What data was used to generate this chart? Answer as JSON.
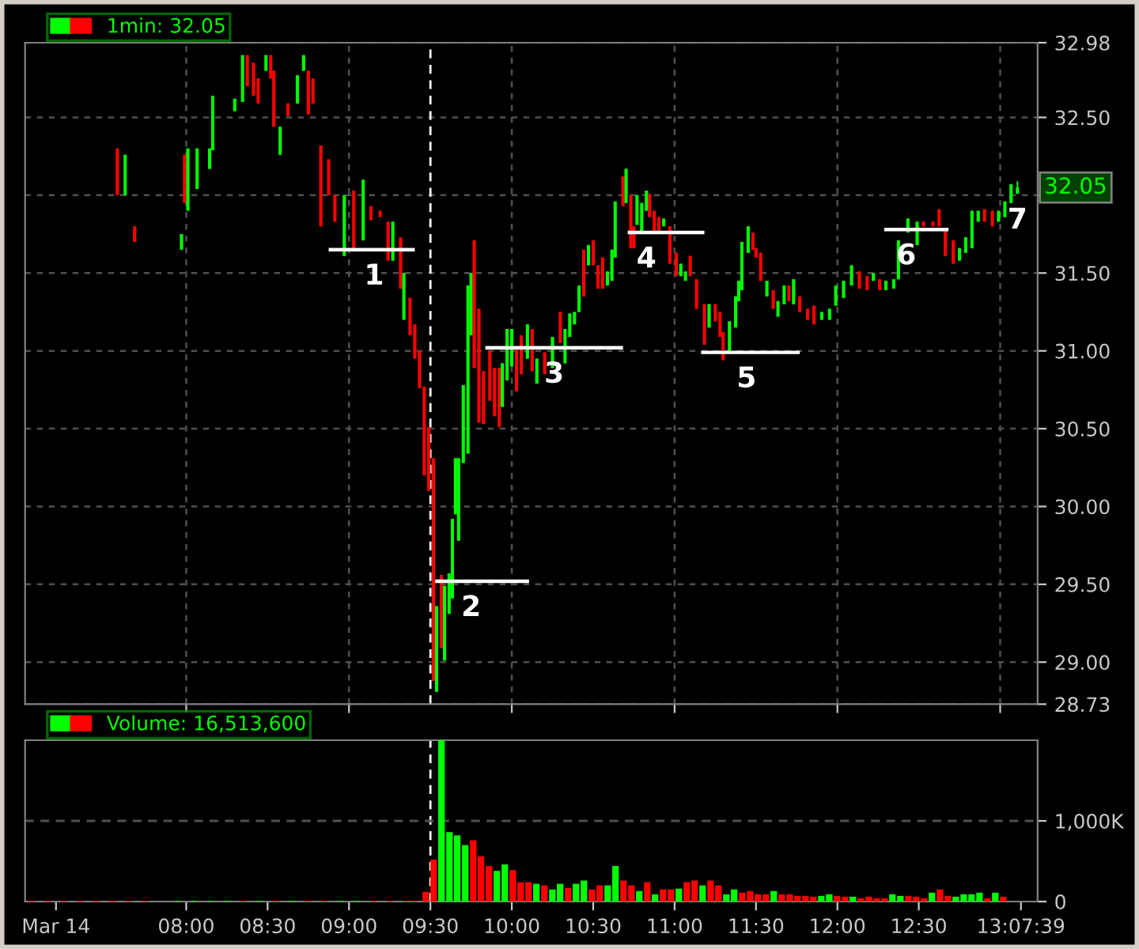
{
  "chart_data": [
    {
      "type": "candlestick",
      "xlim": [
        7.01,
        13.23
      ],
      "ylim": [
        28.73,
        32.98
      ],
      "xticks": [
        {
          "value": 8,
          "label": null
        },
        {
          "value": 9,
          "label": null
        },
        {
          "value": 10,
          "label": null
        },
        {
          "value": 11,
          "label": null
        },
        {
          "value": 12,
          "label": null
        },
        {
          "value": 13,
          "label": null
        }
      ],
      "yticks": [
        {
          "value": 28.73,
          "label": "28.73"
        },
        {
          "value": 29.0,
          "label": "29.00"
        },
        {
          "value": 29.5,
          "label": "29.50"
        },
        {
          "value": 30.0,
          "label": "30.00"
        },
        {
          "value": 30.5,
          "label": "30.50"
        },
        {
          "value": 31.0,
          "label": "31.00"
        },
        {
          "value": 31.5,
          "label": "31.50"
        },
        {
          "value": 32.0,
          "label": null
        },
        {
          "value": 32.5,
          "label": "32.50"
        },
        {
          "value": 32.98,
          "label": "32.98"
        }
      ],
      "tick_labels": "y",
      "grid": true,
      "legend": "top left",
      "ref_lines": [
        {
          "axis": "x",
          "value": 9.5,
          "color": "#ffffff",
          "line_style": "dashed"
        }
      ],
      "annotations": [
        {
          "text": "1",
          "x": 9.154,
          "y": 31.65
        },
        {
          "text": "2",
          "x": 9.75,
          "y": 29.52
        },
        {
          "text": "3",
          "x": 10.26,
          "y": 31.02
        },
        {
          "text": "4",
          "x": 10.827,
          "y": 31.76
        },
        {
          "text": "5",
          "x": 11.442,
          "y": 30.99
        },
        {
          "text": "6",
          "x": 12.423,
          "y": 31.78
        },
        {
          "text": "7",
          "x": 13.106,
          "y": 32.01
        },
        "32.05"
      ],
      "series": [
        {
          "name": "1min: 32.05",
          "x": [
            7.577,
            7.625,
            7.683,
            7.971,
            7.99,
            8.01,
            8.067,
            8.144,
            8.163,
            8.298,
            8.346,
            8.375,
            8.413,
            8.442,
            8.49,
            8.519,
            8.538,
            8.577,
            8.625,
            8.683,
            8.721,
            8.75,
            8.779,
            8.827,
            8.875,
            8.913,
            8.971,
            9.029,
            9.087,
            9.135,
            9.192,
            9.24,
            9.269,
            9.317,
            9.337,
            9.375,
            9.404,
            9.433,
            9.462,
            9.49,
            9.519,
            9.538,
            9.567,
            9.587,
            9.615,
            9.635,
            9.654,
            9.673,
            9.702,
            9.731,
            9.75,
            9.769,
            9.798,
            9.827,
            9.865,
            9.894,
            9.923,
            9.942,
            9.971,
            10.0,
            10.029,
            10.058,
            10.096,
            10.125,
            10.154,
            10.202,
            10.25,
            10.298,
            10.327,
            10.356,
            10.385,
            10.413,
            10.442,
            10.471,
            10.5,
            10.529,
            10.558,
            10.587,
            10.615,
            10.635,
            10.683,
            10.702,
            10.731,
            10.75,
            10.769,
            10.798,
            10.827,
            10.846,
            10.875,
            10.904,
            10.933,
            10.971,
            11.01,
            11.038,
            11.067,
            11.096,
            11.135,
            11.183,
            11.212,
            11.25,
            11.279,
            11.298,
            11.337,
            11.375,
            11.394,
            11.413,
            11.452,
            11.481,
            11.5,
            11.529,
            11.567,
            11.606,
            11.635,
            11.673,
            11.702,
            11.731,
            11.769,
            11.817,
            11.856,
            11.904,
            11.952,
            11.99,
            12.038,
            12.087,
            12.135,
            12.183,
            12.221,
            12.26,
            12.298,
            12.346,
            12.375,
            12.433,
            12.49,
            12.529,
            12.587,
            12.625,
            12.663,
            12.712,
            12.75,
            12.788,
            12.827,
            12.865,
            12.904,
            12.952,
            12.99,
            13.029,
            13.067,
            13.106
          ],
          "ohlc": [
            [
              32.3,
              32.3,
              32.0,
              32.0
            ],
            [
              32.0,
              32.26,
              32.0,
              32.26
            ],
            [
              31.8,
              31.8,
              31.7,
              31.7
            ],
            [
              31.65,
              31.75,
              31.65,
              31.75
            ],
            [
              32.26,
              32.26,
              31.95,
              31.95
            ],
            [
              31.9,
              32.3,
              31.9,
              32.3
            ],
            [
              32.04,
              32.3,
              32.04,
              32.3
            ],
            [
              32.17,
              32.3,
              32.17,
              32.3
            ],
            [
              32.29,
              32.64,
              32.29,
              32.64
            ],
            [
              32.54,
              32.62,
              32.54,
              32.62
            ],
            [
              32.6,
              32.9,
              32.6,
              32.9
            ],
            [
              32.9,
              32.9,
              32.7,
              32.7
            ],
            [
              32.85,
              32.85,
              32.64,
              32.64
            ],
            [
              32.75,
              32.75,
              32.59,
              32.59
            ],
            [
              32.8,
              32.9,
              32.8,
              32.9
            ],
            [
              32.9,
              32.9,
              32.75,
              32.75
            ],
            [
              32.8,
              32.8,
              32.44,
              32.44
            ],
            [
              32.26,
              32.44,
              32.26,
              32.44
            ],
            [
              32.59,
              32.59,
              32.51,
              32.51
            ],
            [
              32.59,
              32.77,
              32.59,
              32.77
            ],
            [
              32.8,
              32.9,
              32.8,
              32.9
            ],
            [
              32.8,
              32.8,
              32.52,
              32.52
            ],
            [
              32.75,
              32.75,
              32.59,
              32.59
            ],
            [
              32.32,
              32.32,
              31.8,
              31.8
            ],
            [
              32.23,
              32.23,
              32.0,
              32.0
            ],
            [
              32.0,
              32.0,
              31.83,
              31.83
            ],
            [
              31.61,
              32.0,
              31.61,
              32.0
            ],
            [
              32.03,
              32.03,
              31.66,
              31.66
            ],
            [
              31.71,
              32.1,
              31.71,
              32.1
            ],
            [
              31.93,
              31.93,
              31.84,
              31.84
            ],
            [
              31.9,
              31.9,
              31.86,
              31.86
            ],
            [
              31.83,
              31.83,
              31.58,
              31.58
            ],
            [
              31.58,
              31.83,
              31.58,
              31.83
            ],
            [
              31.73,
              31.73,
              31.4,
              31.4
            ],
            [
              31.2,
              31.5,
              31.2,
              31.5
            ],
            [
              31.34,
              31.34,
              31.1,
              31.1
            ],
            [
              31.17,
              31.17,
              30.95,
              30.95
            ],
            [
              31.0,
              31.0,
              30.76,
              30.76
            ],
            [
              30.77,
              30.77,
              30.2,
              30.2
            ],
            [
              30.51,
              30.51,
              30.1,
              30.1
            ],
            [
              30.31,
              30.31,
              28.88,
              28.88
            ],
            [
              28.81,
              29.36,
              28.81,
              29.36
            ],
            [
              29.56,
              29.56,
              29.09,
              29.09
            ],
            [
              29.01,
              29.49,
              29.01,
              29.49
            ],
            [
              29.31,
              29.57,
              29.31,
              29.57
            ],
            [
              29.41,
              29.92,
              29.41,
              29.92
            ],
            [
              29.95,
              30.31,
              29.95,
              30.31
            ],
            [
              29.78,
              30.31,
              29.78,
              30.31
            ],
            [
              30.28,
              30.78,
              30.28,
              30.78
            ],
            [
              30.34,
              31.42,
              30.34,
              31.42
            ],
            [
              31.1,
              31.5,
              31.1,
              31.5
            ],
            [
              31.71,
              31.71,
              30.89,
              30.89
            ],
            [
              31.27,
              31.27,
              30.54,
              30.54
            ],
            [
              30.87,
              30.87,
              30.53,
              30.53
            ],
            [
              31.0,
              31.0,
              30.68,
              30.68
            ],
            [
              30.89,
              30.89,
              30.58,
              30.58
            ],
            [
              30.89,
              30.89,
              30.51,
              30.51
            ],
            [
              30.64,
              30.92,
              30.64,
              30.92
            ],
            [
              30.81,
              31.14,
              30.81,
              31.14
            ],
            [
              30.9,
              31.14,
              30.9,
              31.14
            ],
            [
              31.02,
              31.02,
              30.74,
              30.74
            ],
            [
              31.1,
              31.1,
              30.85,
              30.85
            ],
            [
              30.95,
              31.17,
              30.95,
              31.17
            ],
            [
              31.14,
              31.14,
              30.87,
              30.87
            ],
            [
              30.79,
              30.95,
              30.79,
              30.95
            ],
            [
              30.99,
              30.99,
              30.85,
              30.85
            ],
            [
              30.89,
              31.09,
              30.89,
              31.09
            ],
            [
              31.25,
              31.25,
              31.05,
              31.05
            ],
            [
              30.92,
              31.14,
              30.92,
              31.14
            ],
            [
              31.09,
              31.24,
              31.09,
              31.24
            ],
            [
              31.17,
              31.25,
              31.17,
              31.25
            ],
            [
              31.25,
              31.42,
              31.25,
              31.42
            ],
            [
              31.65,
              31.65,
              31.35,
              31.35
            ],
            [
              31.55,
              31.68,
              31.55,
              31.68
            ],
            [
              31.71,
              31.71,
              31.55,
              31.55
            ],
            [
              31.55,
              31.55,
              31.4,
              31.4
            ],
            [
              31.6,
              31.6,
              31.4,
              31.4
            ],
            [
              31.42,
              31.51,
              31.42,
              31.51
            ],
            [
              31.45,
              31.65,
              31.45,
              31.65
            ],
            [
              31.6,
              31.96,
              31.6,
              31.96
            ],
            [
              32.12,
              32.12,
              31.93,
              31.93
            ],
            [
              31.95,
              32.17,
              31.95,
              32.17
            ],
            [
              32.0,
              32.0,
              31.66,
              31.66
            ],
            [
              31.8,
              31.8,
              31.66,
              31.66
            ],
            [
              31.81,
              32.0,
              31.81,
              32.0
            ],
            [
              31.76,
              31.95,
              31.76,
              31.95
            ],
            [
              31.9,
              32.03,
              31.9,
              32.03
            ],
            [
              32.01,
              32.01,
              31.86,
              31.86
            ],
            [
              31.9,
              31.9,
              31.76,
              31.76
            ],
            [
              31.86,
              31.86,
              31.76,
              31.76
            ],
            [
              31.8,
              31.85,
              31.8,
              31.85
            ],
            [
              31.8,
              31.8,
              31.56,
              31.56
            ],
            [
              31.63,
              31.63,
              31.48,
              31.48
            ],
            [
              31.48,
              31.56,
              31.48,
              31.56
            ],
            [
              31.45,
              31.51,
              31.45,
              31.51
            ],
            [
              31.61,
              31.61,
              31.48,
              31.48
            ],
            [
              31.46,
              31.46,
              31.27,
              31.27
            ],
            [
              31.3,
              31.3,
              31.04,
              31.04
            ],
            [
              31.15,
              31.3,
              31.15,
              31.3
            ],
            [
              31.3,
              31.3,
              31.19,
              31.19
            ],
            [
              31.25,
              31.25,
              31.09,
              31.09
            ],
            [
              31.12,
              31.12,
              30.94,
              30.94
            ],
            [
              31.0,
              31.19,
              31.0,
              31.19
            ],
            [
              31.15,
              31.35,
              31.15,
              31.35
            ],
            [
              31.32,
              31.45,
              31.32,
              31.45
            ],
            [
              31.39,
              31.7,
              31.39,
              31.7
            ],
            [
              31.63,
              31.8,
              31.63,
              31.8
            ],
            [
              31.76,
              31.76,
              31.65,
              31.65
            ],
            [
              31.66,
              31.66,
              31.6,
              31.6
            ],
            [
              31.63,
              31.63,
              31.45,
              31.45
            ],
            [
              31.35,
              31.45,
              31.35,
              31.45
            ],
            [
              31.39,
              31.39,
              31.27,
              31.27
            ],
            [
              31.22,
              31.32,
              31.22,
              31.32
            ],
            [
              31.3,
              31.42,
              31.3,
              31.42
            ],
            [
              31.42,
              31.42,
              31.32,
              31.32
            ],
            [
              31.3,
              31.46,
              31.3,
              31.46
            ],
            [
              31.35,
              31.35,
              31.25,
              31.25
            ],
            [
              31.27,
              31.27,
              31.2,
              31.2
            ],
            [
              31.29,
              31.29,
              31.17,
              31.17
            ],
            [
              31.2,
              31.25,
              31.2,
              31.25
            ],
            [
              31.2,
              31.27,
              31.2,
              31.27
            ],
            [
              31.29,
              31.42,
              31.29,
              31.42
            ],
            [
              31.34,
              31.45,
              31.34,
              31.45
            ],
            [
              31.42,
              31.55,
              31.42,
              31.55
            ],
            [
              31.51,
              31.51,
              31.4,
              31.4
            ],
            [
              31.48,
              31.48,
              31.39,
              31.39
            ],
            [
              31.45,
              31.5,
              31.45,
              31.5
            ],
            [
              31.46,
              31.46,
              31.39,
              31.39
            ],
            [
              31.39,
              31.45,
              31.39,
              31.45
            ],
            [
              31.4,
              31.46,
              31.4,
              31.46
            ],
            [
              31.46,
              31.71,
              31.46,
              31.71
            ],
            [
              31.76,
              31.85,
              31.76,
              31.85
            ],
            [
              31.68,
              31.83,
              31.68,
              31.83
            ],
            [
              31.83,
              31.83,
              31.8,
              31.8
            ],
            [
              31.83,
              31.83,
              31.8,
              31.8
            ],
            [
              31.91,
              31.91,
              31.8,
              31.8
            ],
            [
              31.78,
              31.78,
              31.61,
              31.61
            ],
            [
              31.71,
              31.71,
              31.56,
              31.56
            ],
            [
              31.58,
              31.66,
              31.58,
              31.66
            ],
            [
              31.63,
              31.73,
              31.63,
              31.73
            ],
            [
              31.66,
              31.9,
              31.66,
              31.9
            ],
            [
              31.83,
              31.9,
              31.83,
              31.9
            ],
            [
              31.91,
              31.91,
              31.83,
              31.83
            ],
            [
              31.9,
              31.9,
              31.8,
              31.8
            ],
            [
              31.83,
              31.9,
              31.83,
              31.9
            ],
            [
              31.86,
              31.96,
              31.86,
              31.96
            ],
            [
              31.95,
              32.07,
              31.95,
              32.07
            ],
            [
              32.01,
              32.09,
              32.01,
              32.05
            ]
          ],
          "colors": [
            "#ff0000",
            "#00ff00",
            "#ff0000",
            "#00ff00",
            "#ff0000",
            "#00ff00",
            "#00ff00",
            "#00ff00",
            "#00ff00",
            "#00ff00",
            "#00ff00",
            "#ff0000",
            "#ff0000",
            "#ff0000",
            "#00ff00",
            "#ff0000",
            "#ff0000",
            "#00ff00",
            "#ff0000",
            "#00ff00",
            "#00ff00",
            "#ff0000",
            "#ff0000",
            "#ff0000",
            "#ff0000",
            "#ff0000",
            "#00ff00",
            "#ff0000",
            "#00ff00",
            "#ff0000",
            "#ff0000",
            "#ff0000",
            "#00ff00",
            "#ff0000",
            "#00ff00",
            "#ff0000",
            "#ff0000",
            "#ff0000",
            "#ff0000",
            "#ff0000",
            "#ff0000",
            "#00ff00",
            "#ff0000",
            "#00ff00",
            "#00ff00",
            "#00ff00",
            "#00ff00",
            "#00ff00",
            "#00ff00",
            "#00ff00",
            "#00ff00",
            "#ff0000",
            "#ff0000",
            "#ff0000",
            "#ff0000",
            "#ff0000",
            "#ff0000",
            "#00ff00",
            "#00ff00",
            "#00ff00",
            "#ff0000",
            "#ff0000",
            "#00ff00",
            "#ff0000",
            "#00ff00",
            "#ff0000",
            "#00ff00",
            "#ff0000",
            "#00ff00",
            "#00ff00",
            "#00ff00",
            "#00ff00",
            "#ff0000",
            "#00ff00",
            "#ff0000",
            "#ff0000",
            "#ff0000",
            "#00ff00",
            "#00ff00",
            "#00ff00",
            "#ff0000",
            "#00ff00",
            "#ff0000",
            "#ff0000",
            "#00ff00",
            "#00ff00",
            "#00ff00",
            "#ff0000",
            "#ff0000",
            "#ff0000",
            "#00ff00",
            "#ff0000",
            "#ff0000",
            "#00ff00",
            "#00ff00",
            "#ff0000",
            "#ff0000",
            "#ff0000",
            "#00ff00",
            "#ff0000",
            "#ff0000",
            "#ff0000",
            "#00ff00",
            "#00ff00",
            "#00ff00",
            "#00ff00",
            "#00ff00",
            "#ff0000",
            "#ff0000",
            "#ff0000",
            "#00ff00",
            "#ff0000",
            "#00ff00",
            "#00ff00",
            "#ff0000",
            "#00ff00",
            "#ff0000",
            "#ff0000",
            "#ff0000",
            "#00ff00",
            "#00ff00",
            "#00ff00",
            "#00ff00",
            "#00ff00",
            "#ff0000",
            "#ff0000",
            "#00ff00",
            "#ff0000",
            "#00ff00",
            "#00ff00",
            "#00ff00",
            "#00ff00",
            "#00ff00",
            "#ff0000",
            "#ff0000",
            "#ff0000",
            "#ff0000",
            "#ff0000",
            "#00ff00",
            "#00ff00",
            "#00ff00",
            "#00ff00",
            "#ff0000",
            "#ff0000",
            "#00ff00",
            "#00ff00",
            "#00ff00",
            "#00ff00"
          ]
        },
        {
          "type": "line",
          "color": "#ffffff",
          "x": [
            8.875,
            9.404
          ],
          "values": [
            31.65,
            31.65
          ]
        },
        {
          "type": "line",
          "color": "#ffffff",
          "x": [
            9.529,
            10.106
          ],
          "values": [
            29.52,
            29.52
          ]
        },
        {
          "type": "line",
          "color": "#ffffff",
          "x": [
            9.837,
            10.683
          ],
          "values": [
            31.02,
            31.02
          ]
        },
        {
          "type": "line",
          "color": "#ffffff",
          "x": [
            10.712,
            11.183
          ],
          "values": [
            31.76,
            31.76
          ]
        },
        {
          "type": "line",
          "color": "#ffffff",
          "x": [
            11.163,
            11.769
          ],
          "values": [
            30.99,
            30.99
          ]
        },
        {
          "type": "line",
          "color": "#ffffff",
          "x": [
            12.288,
            12.683
          ],
          "values": [
            31.78,
            31.78
          ]
        }
      ]
    },
    {
      "type": "bar",
      "xlim": [
        7.01,
        13.23
      ],
      "ylim": [
        0,
        2000
      ],
      "xticks": [
        {
          "value": 7.2,
          "label": "Mar 14"
        },
        {
          "value": 8,
          "label": "08:00"
        },
        {
          "value": 8.5,
          "label": "08:30"
        },
        {
          "value": 9,
          "label": "09:00"
        },
        {
          "value": 9.5,
          "label": "09:30"
        },
        {
          "value": 10,
          "label": "10:00"
        },
        {
          "value": 10.5,
          "label": "10:30"
        },
        {
          "value": 11,
          "label": "11:00"
        },
        {
          "value": 11.5,
          "label": "11:30"
        },
        {
          "value": 12,
          "label": "12:00"
        },
        {
          "value": 12.5,
          "label": "12:30"
        },
        {
          "value": 13.1275,
          "label": "13:07:39"
        }
      ],
      "yticks": [
        0,
        {
          "value": 1000,
          "label": "1,000K"
        }
      ],
      "legend": "top left",
      "ref_lines": [
        {
          "axis": "x",
          "value": 9.5,
          "color": "#ffffff",
          "line_style": "dashed"
        },
        {
          "axis": "y",
          "value": 1000,
          "color": "#505050",
          "line_style": "dashed"
        }
      ],
      "series": [
        {
          "name": "Volume: 16,513,600",
          "x": [
            7.05,
            7.15,
            7.25,
            7.35,
            7.45,
            7.55,
            7.65,
            7.75,
            7.95,
            8.05,
            8.15,
            8.25,
            8.35,
            8.45,
            8.55,
            8.65,
            8.75,
            8.85,
            8.95,
            9.05,
            9.15,
            9.25,
            9.35,
            9.4,
            9.471,
            9.52,
            9.568,
            9.617,
            9.665,
            9.714,
            9.763,
            9.811,
            9.86,
            9.908,
            9.957,
            10.006,
            10.054,
            10.103,
            10.151,
            10.2,
            10.249,
            10.297,
            10.346,
            10.394,
            10.443,
            10.492,
            10.54,
            10.589,
            10.637,
            10.686,
            10.735,
            10.783,
            10.832,
            10.88,
            10.929,
            10.978,
            11.026,
            11.075,
            11.123,
            11.172,
            11.221,
            11.269,
            11.318,
            11.366,
            11.415,
            11.464,
            11.512,
            11.561,
            11.609,
            11.658,
            11.707,
            11.755,
            11.804,
            11.852,
            11.901,
            11.95,
            11.998,
            12.047,
            12.095,
            12.144,
            12.193,
            12.241,
            12.29,
            12.338,
            12.387,
            12.436,
            12.484,
            12.533,
            12.581,
            12.63,
            12.679,
            12.727,
            12.776,
            12.824,
            12.873,
            12.922,
            12.97,
            13.019
          ],
          "values": [
            10,
            10,
            10,
            10,
            10,
            10,
            10,
            10,
            10,
            10,
            10,
            10,
            10,
            10,
            10,
            10,
            10,
            10,
            10,
            10,
            10,
            10,
            10,
            10,
            120,
            520,
            2000,
            860,
            820,
            700,
            760,
            560,
            440,
            380,
            460,
            390,
            240,
            240,
            220,
            200,
            150,
            220,
            170,
            220,
            260,
            150,
            200,
            200,
            440,
            260,
            200,
            130,
            240,
            90,
            150,
            150,
            160,
            240,
            260,
            200,
            260,
            200,
            90,
            150,
            110,
            130,
            90,
            90,
            130,
            90,
            90,
            70,
            70,
            60,
            70,
            90,
            70,
            60,
            60,
            40,
            60,
            40,
            40,
            90,
            70,
            70,
            60,
            40,
            110,
            150,
            70,
            60,
            90,
            90,
            110,
            40,
            110,
            60
          ],
          "colors": [
            "#ff0000",
            "#ff0000",
            "#ff0000",
            "#ff0000",
            "#ff0000",
            "#ff0000",
            "#ff0000",
            "#ff0000",
            "#00ff00",
            "#00ff00",
            "#00ff00",
            "#00ff00",
            "#ff0000",
            "#00ff00",
            "#ff0000",
            "#00ff00",
            "#ff0000",
            "#ff0000",
            "#00ff00",
            "#00ff00",
            "#ff0000",
            "#ff0000",
            "#ff0000",
            "#ff0000",
            "#ff0000",
            "#ff0000",
            "#00ff00",
            "#00ff00",
            "#00ff00",
            "#00ff00",
            "#ff0000",
            "#ff0000",
            "#ff0000",
            "#00ff00",
            "#00ff00",
            "#ff0000",
            "#ff0000",
            "#ff0000",
            "#00ff00",
            "#ff0000",
            "#00ff00",
            "#00ff00",
            "#ff0000",
            "#00ff00",
            "#00ff00",
            "#ff0000",
            "#ff0000",
            "#00ff00",
            "#00ff00",
            "#ff0000",
            "#ff0000",
            "#00ff00",
            "#ff0000",
            "#00ff00",
            "#ff0000",
            "#ff0000",
            "#00ff00",
            "#ff0000",
            "#ff0000",
            "#00ff00",
            "#ff0000",
            "#ff0000",
            "#00ff00",
            "#00ff00",
            "#ff0000",
            "#ff0000",
            "#ff0000",
            "#ff0000",
            "#00ff00",
            "#ff0000",
            "#ff0000",
            "#ff0000",
            "#ff0000",
            "#ff0000",
            "#00ff00",
            "#00ff00",
            "#ff0000",
            "#ff0000",
            "#00ff00",
            "#ff0000",
            "#ff0000",
            "#ff0000",
            "#ff0000",
            "#00ff00",
            "#00ff00",
            "#ff0000",
            "#ff0000",
            "#ff0000",
            "#00ff00",
            "#ff0000",
            "#ff0000",
            "#00ff00",
            "#00ff00",
            "#00ff00",
            "#00ff00",
            "#ff0000",
            "#00ff00",
            "#ff0000"
          ]
        }
      ]
    }
  ]
}
